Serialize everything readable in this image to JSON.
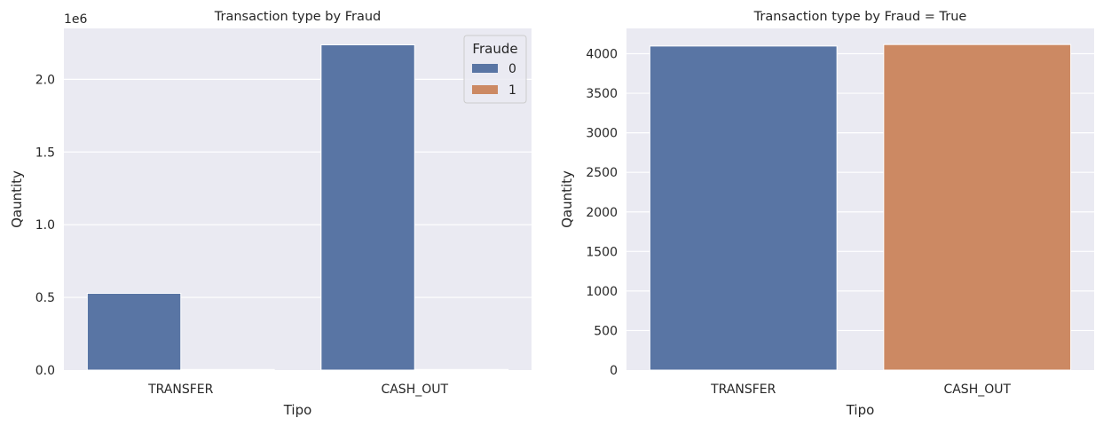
{
  "chart_data": [
    {
      "type": "bar",
      "title": "Transaction type by Fraud",
      "xlabel": "Tipo",
      "ylabel": "Qauntity",
      "offset_text": "1e6",
      "categories": [
        "TRANSFER",
        "CASH_OUT"
      ],
      "series": [
        {
          "name": "0",
          "color": "#5975a4",
          "values": [
            528000,
            2237000
          ]
        },
        {
          "name": "1",
          "color": "#cc8963",
          "values": [
            4097,
            4116
          ]
        }
      ],
      "ylim": [
        0,
        2350000
      ],
      "yticks": [
        0,
        500000,
        1000000,
        1500000,
        2000000
      ],
      "ytick_labels": [
        "0.0",
        "0.5",
        "1.0",
        "1.5",
        "2.0"
      ],
      "legend": {
        "title": "Fraude",
        "position": "top-right"
      },
      "grid": true
    },
    {
      "type": "bar",
      "title": "Transaction type by Fraud = True",
      "xlabel": "Tipo",
      "ylabel": "Qauntity",
      "categories": [
        "TRANSFER",
        "CASH_OUT"
      ],
      "values": [
        4097,
        4116
      ],
      "colors": [
        "#5975a4",
        "#cc8963"
      ],
      "ylim": [
        0,
        4320
      ],
      "yticks": [
        0,
        500,
        1000,
        1500,
        2000,
        2500,
        3000,
        3500,
        4000
      ],
      "ytick_labels": [
        "0",
        "500",
        "1000",
        "1500",
        "2000",
        "2500",
        "3000",
        "3500",
        "4000"
      ],
      "grid": true
    }
  ]
}
